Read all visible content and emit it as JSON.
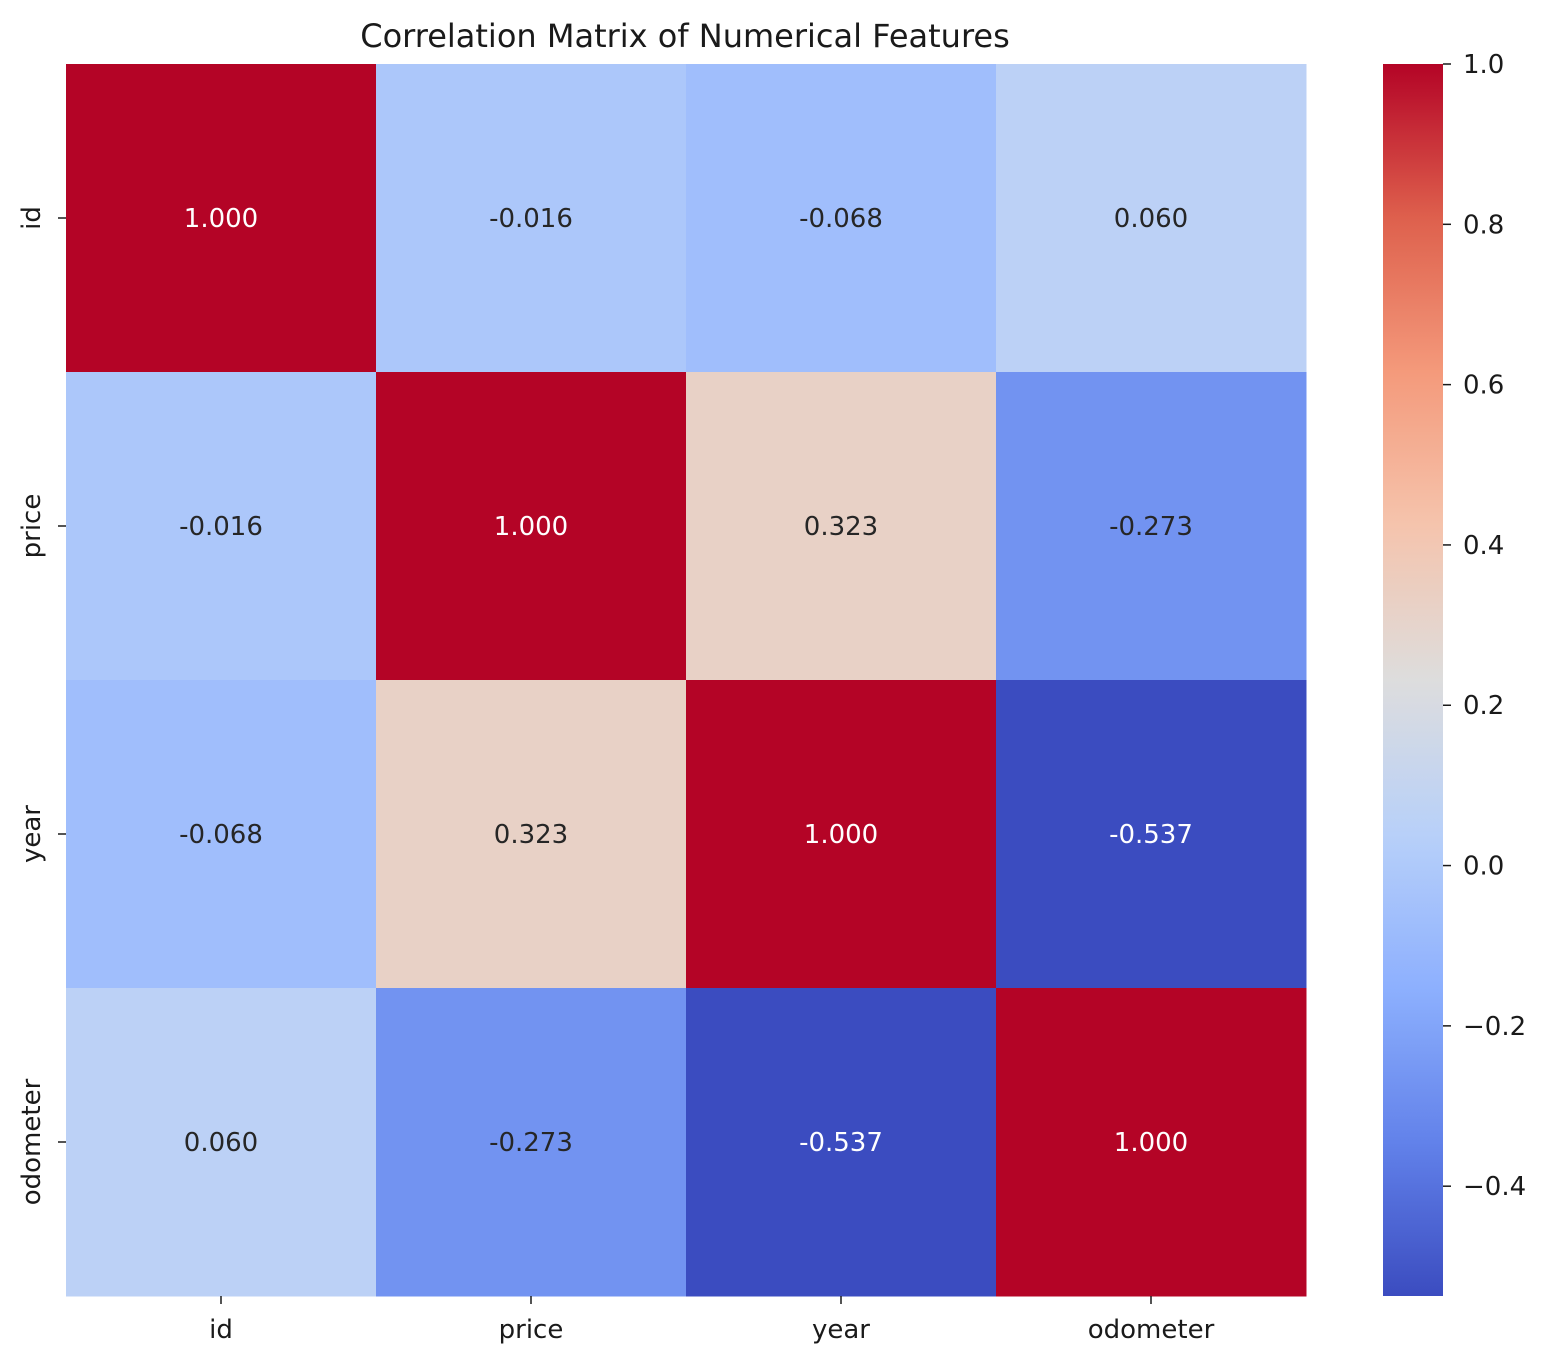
{
  "chart_data": {
    "type": "heatmap",
    "title": "Correlation Matrix of Numerical Features",
    "xlabel": "",
    "ylabel": "",
    "row_labels": [
      "id",
      "price",
      "year",
      "odometer"
    ],
    "col_labels": [
      "id",
      "price",
      "year",
      "odometer"
    ],
    "matrix": [
      [
        1.0,
        -0.016,
        -0.068,
        0.06
      ],
      [
        -0.016,
        1.0,
        0.323,
        -0.273
      ],
      [
        -0.068,
        0.323,
        1.0,
        -0.537
      ],
      [
        0.06,
        -0.273,
        -0.537,
        1.0
      ]
    ],
    "cell_labels": [
      [
        "1.000",
        "-0.016",
        "-0.068",
        "0.060"
      ],
      [
        "-0.016",
        "1.000",
        "0.323",
        "-0.273"
      ],
      [
        "-0.068",
        "0.323",
        "1.000",
        "-0.537"
      ],
      [
        "0.060",
        "-0.273",
        "-0.537",
        "1.000"
      ]
    ],
    "colormap": "coolwarm",
    "colorbar": {
      "vmin": -0.537,
      "vmax": 1.0,
      "ticks": [
        1.0,
        0.8,
        0.6,
        0.4,
        0.2,
        0.0,
        -0.2,
        -0.4
      ],
      "tick_labels": [
        "1.0",
        "0.8",
        "0.6",
        "0.4",
        "0.2",
        "0.0",
        "−0.2",
        "−0.4"
      ]
    },
    "grid": false,
    "legend": "colorbar-right"
  }
}
